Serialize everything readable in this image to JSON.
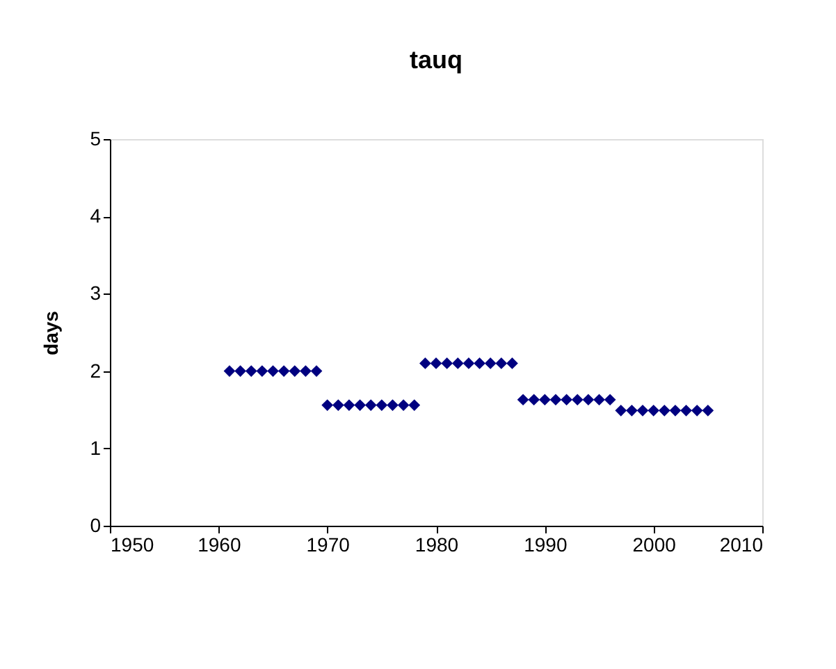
{
  "chart_data": {
    "type": "scatter",
    "title": "tauq",
    "ylabel": "days",
    "x": [
      1961,
      1962,
      1963,
      1964,
      1965,
      1966,
      1967,
      1968,
      1969,
      1970,
      1971,
      1972,
      1973,
      1974,
      1975,
      1976,
      1977,
      1978,
      1979,
      1980,
      1981,
      1982,
      1983,
      1984,
      1985,
      1986,
      1987,
      1988,
      1989,
      1990,
      1991,
      1992,
      1993,
      1994,
      1995,
      1996,
      1997,
      1998,
      1999,
      2000,
      2001,
      2002,
      2003,
      2004,
      2005
    ],
    "series": [
      {
        "color": "#000080",
        "values": [
          2.0,
          2.0,
          2.0,
          2.0,
          2.0,
          2.0,
          2.0,
          2.0,
          2.0,
          1.56,
          1.56,
          1.56,
          1.56,
          1.56,
          1.56,
          1.56,
          1.56,
          1.56,
          2.1,
          2.1,
          2.1,
          2.1,
          2.1,
          2.1,
          2.1,
          2.1,
          2.1,
          1.63,
          1.63,
          1.63,
          1.63,
          1.63,
          1.63,
          1.63,
          1.63,
          1.63,
          1.49,
          1.49,
          1.49,
          1.49,
          1.49,
          1.49,
          1.49,
          1.49,
          1.49
        ]
      }
    ],
    "xlim": [
      1950,
      2010
    ],
    "xticks": [
      1950,
      1960,
      1970,
      1980,
      1990,
      2000,
      2010
    ],
    "ylim": [
      0,
      5
    ],
    "yticks": [
      0,
      1,
      2,
      3,
      4,
      5
    ],
    "grid": false,
    "marker": "diamond"
  }
}
